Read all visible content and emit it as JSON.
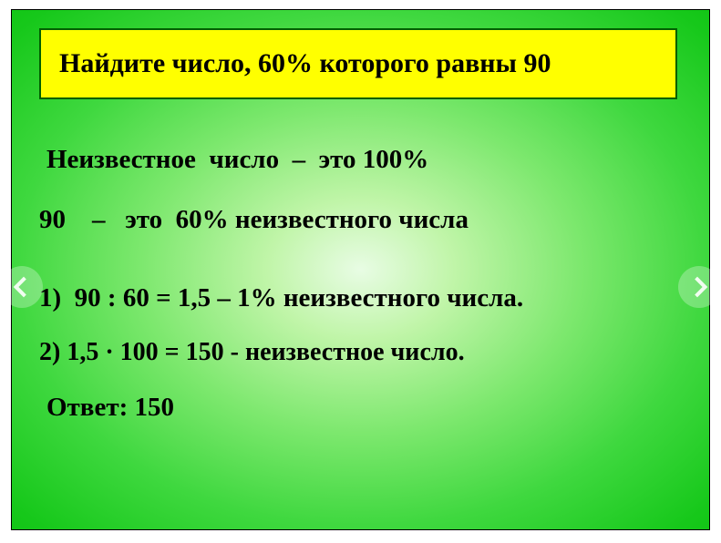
{
  "slide": {
    "background_gradient_colors": [
      "#e8fce4",
      "#c0f5a8",
      "#7de86e",
      "#3fd83f",
      "#16c81a",
      "#00b800"
    ],
    "border_color": "#000000",
    "title": {
      "text": "Найдите число, 60% которого равны 90",
      "background_color": "#ffff00",
      "border_color": "#006000",
      "font_size": 30,
      "font_weight": "bold",
      "text_color": "#000000"
    },
    "lines": {
      "l1": "Неизвестное  число  –  это 100%",
      "l2": "90    –   это  60% неизвестного числа",
      "l3": "1)  90 : 60 = 1,5 – 1% неизвестного числа.",
      "l4": "2) 1,5 · 100 = 150 - неизвестное число.",
      "l5": "Ответ: 150",
      "font_size": 29,
      "font_weight": "bold",
      "text_color": "#000000"
    },
    "nav": {
      "circle_background": "rgba(255,255,255,0.28)",
      "chevron_color": "rgba(255,255,255,0.9)"
    }
  }
}
